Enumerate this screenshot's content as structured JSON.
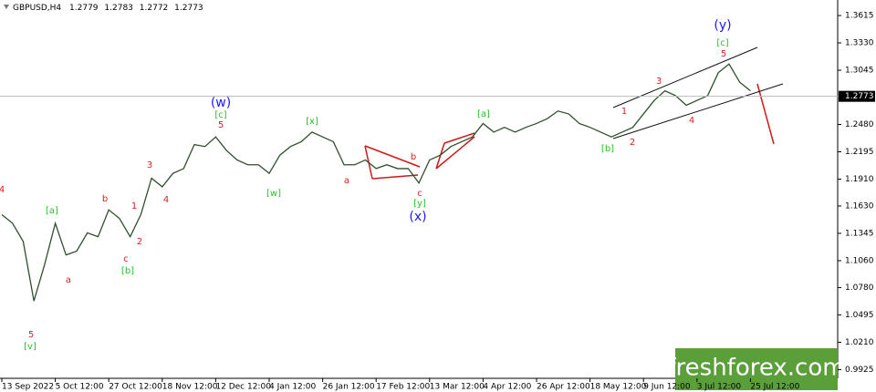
{
  "chart_data": {
    "type": "line",
    "symbol": "GBPUSD,H4",
    "ohlc": [
      1.2779,
      1.2783,
      1.2772,
      1.2773
    ],
    "categories": [
      "13 Sep 2022",
      null,
      null,
      null,
      null,
      "5 Oct 12:00",
      null,
      null,
      null,
      null,
      "27 Oct 12:00",
      null,
      null,
      null,
      null,
      "18 Nov 12:00",
      null,
      null,
      null,
      null,
      "12 Dec 12:00",
      null,
      null,
      null,
      null,
      "4 Jan 12:00",
      null,
      null,
      null,
      null,
      "26 Jan 12:00",
      null,
      null,
      null,
      null,
      "17 Feb 12:00",
      null,
      null,
      null,
      null,
      "13 Mar 12:00",
      null,
      null,
      null,
      null,
      "4 Apr 12:00",
      null,
      null,
      null,
      null,
      "26 Apr 12:00",
      null,
      null,
      null,
      null,
      "18 May 12:00",
      null,
      null,
      null,
      null,
      "9 Jun 12:00",
      null,
      null,
      null,
      null,
      "3 Jul 12:00",
      null,
      null,
      null,
      null,
      "25 Jul 12:00"
    ],
    "series": [
      {
        "name": "GBPUSD",
        "color": "#2f4f2f",
        "values": [
          1.154,
          1.145,
          1.126,
          1.064,
          1.102,
          1.145,
          1.112,
          1.116,
          1.135,
          1.131,
          1.159,
          1.15,
          1.131,
          1.154,
          1.192,
          1.183,
          1.197,
          1.202,
          1.227,
          1.225,
          1.235,
          1.221,
          1.211,
          1.206,
          1.206,
          1.197,
          1.216,
          1.225,
          1.23,
          1.24,
          1.235,
          1.23,
          1.206,
          1.206,
          1.211,
          1.202,
          1.206,
          1.202,
          1.202,
          1.187,
          1.211,
          1.216,
          1.225,
          1.23,
          1.235,
          1.249,
          1.24,
          1.245,
          1.24,
          1.245,
          1.249,
          1.254,
          1.262,
          1.259,
          1.249,
          1.245,
          1.24,
          1.235,
          1.24,
          1.245,
          1.259,
          1.273,
          1.283,
          1.278,
          1.268,
          1.273,
          1.278,
          1.302,
          1.311,
          1.292,
          1.283
        ]
      }
    ],
    "last_price": 1.2773,
    "ylim": [
      0.9834,
      1.3777
    ],
    "yticks": [
      1.3615,
      {
        "value": 1.333,
        "label": "1.3330"
      },
      1.3045,
      {
        "value": 1.248,
        "label": "1.2480"
      },
      1.2195,
      {
        "value": 1.191,
        "label": "1.1910"
      },
      {
        "value": 1.163,
        "label": "1.1630"
      },
      1.1345,
      {
        "value": 1.106,
        "label": "1.1060"
      },
      {
        "value": 1.078,
        "label": "1.0780"
      },
      1.0495,
      {
        "value": 1.021,
        "label": "1.0210"
      },
      0.9925
    ],
    "annotations": [
      {
        "text": "(y)",
        "color": "#1a1aff"
      },
      {
        "text": "[c]",
        "color": "#22c322"
      },
      {
        "text": "5",
        "color": "#e02020"
      },
      {
        "text": "3",
        "color": "#e02020"
      },
      {
        "text": "1",
        "color": "#e02020"
      },
      {
        "text": "2",
        "color": "#e02020"
      },
      {
        "text": "4",
        "color": "#e02020"
      },
      {
        "text": "[b]",
        "color": "#22c322"
      },
      {
        "text": "[a]",
        "color": "#22c322"
      },
      {
        "text": "(w)",
        "color": "#1a1aff"
      },
      {
        "text": "[c]",
        "color": "#22c322"
      },
      {
        "text": "5",
        "color": "#e02020"
      },
      {
        "text": "[x]",
        "color": "#22c322"
      },
      {
        "text": "[w]",
        "color": "#22c322"
      },
      {
        "text": "3",
        "color": "#e02020"
      },
      {
        "text": "4",
        "color": "#e02020"
      },
      {
        "text": "b",
        "color": "#e02020"
      },
      {
        "text": "1",
        "color": "#e02020"
      },
      {
        "text": "2",
        "color": "#e02020"
      },
      {
        "text": "c",
        "color": "#e02020"
      },
      {
        "text": "[b]",
        "color": "#22c322"
      },
      {
        "text": "[a]",
        "color": "#22c322"
      },
      {
        "text": "a",
        "color": "#e02020"
      },
      {
        "text": "5",
        "color": "#e02020"
      },
      {
        "text": "[v]",
        "color": "#22c322"
      },
      {
        "text": "4",
        "color": "#e02020"
      },
      {
        "text": "a",
        "color": "#e02020"
      },
      {
        "text": "b",
        "color": "#e02020"
      },
      {
        "text": "c",
        "color": "#e02020"
      },
      {
        "text": "[y]",
        "color": "#22c322"
      },
      {
        "text": "(x)",
        "color": "#1a1aff"
      }
    ],
    "watermark": "freshforex.com"
  }
}
